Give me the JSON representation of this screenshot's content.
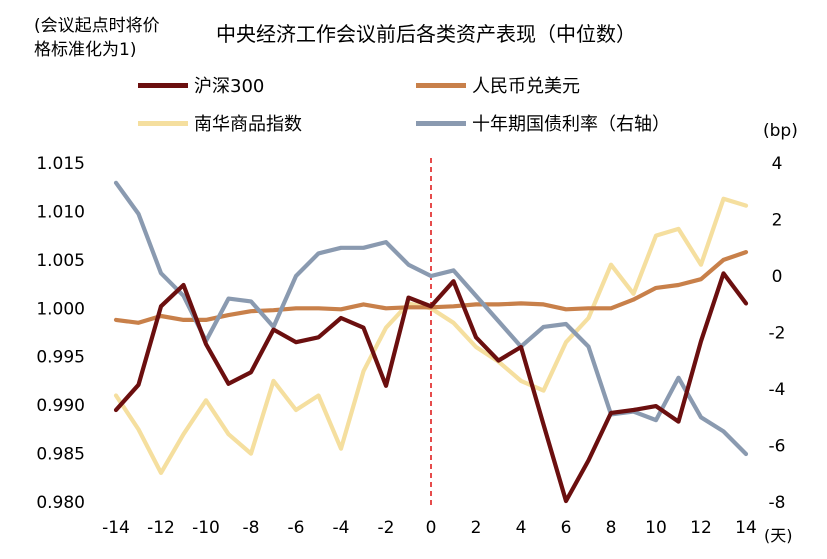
{
  "note_lines": [
    "(会议起点时将价",
    "格标准化为1)"
  ],
  "chart_data": {
    "type": "line",
    "title": "中央经济工作会议前后各类资产表现（中位数）",
    "x": [
      -14,
      -13,
      -12,
      -11,
      -10,
      -9,
      -8,
      -7,
      -6,
      -5,
      -4,
      -3,
      -2,
      -1,
      0,
      1,
      2,
      3,
      4,
      5,
      6,
      7,
      8,
      9,
      10,
      11,
      12,
      13,
      14
    ],
    "x_ticks": [
      "-14",
      "-12",
      "-10",
      "-8",
      "-6",
      "-4",
      "-2",
      "0",
      "2",
      "4",
      "6",
      "8",
      "10",
      "12",
      "14"
    ],
    "x_unit": "(天)",
    "left_axis": {
      "ylim": [
        0.98,
        1.015
      ],
      "ticks": [
        "1.015",
        "1.010",
        "1.005",
        "1.000",
        "0.995",
        "0.990",
        "0.985",
        "0.980"
      ]
    },
    "right_axis": {
      "unit": "(bp)",
      "ylim": [
        -8,
        4
      ],
      "ticks": [
        "4",
        "2",
        "0",
        "-2",
        "-4",
        "-6",
        "-8"
      ]
    },
    "vline_x": 0,
    "colors": {
      "vline": "#e02020"
    },
    "series": [
      {
        "name": "沪深300",
        "axis": "left",
        "color": "#6b0f0f",
        "values": [
          0.9895,
          0.9921,
          1.0002,
          1.0024,
          0.9963,
          0.9922,
          0.9934,
          0.9978,
          0.9965,
          0.997,
          0.999,
          0.998,
          0.992,
          1.0011,
          1.0002,
          1.0028,
          0.997,
          0.9946,
          0.996,
          0.988,
          0.9801,
          0.9843,
          0.9892,
          0.9895,
          0.9899,
          0.9883,
          0.9966,
          1.0036,
          1.0005
        ]
      },
      {
        "name": "人民币兑美元",
        "axis": "left",
        "color": "#c8804a",
        "values": [
          0.9988,
          0.9985,
          0.9992,
          0.9988,
          0.9988,
          0.9993,
          0.9997,
          0.9998,
          1.0,
          1.0,
          0.9999,
          1.0004,
          1.0,
          1.0001,
          1.0001,
          1.0002,
          1.0004,
          1.0004,
          1.0005,
          1.0004,
          0.9999,
          1.0,
          1.0,
          1.0009,
          1.0021,
          1.0024,
          1.003,
          1.005,
          1.0058
        ]
      },
      {
        "name": "南华商品指数",
        "axis": "left",
        "color": "#f5df9f",
        "values": [
          0.991,
          0.9875,
          0.983,
          0.987,
          0.9905,
          0.987,
          0.985,
          0.9925,
          0.9895,
          0.991,
          0.9855,
          0.9935,
          0.998,
          1.0005,
          1.0,
          0.9985,
          0.996,
          0.9945,
          0.9925,
          0.9915,
          0.9965,
          0.999,
          1.0045,
          1.0015,
          1.0075,
          1.0082,
          1.0045,
          1.0113,
          1.0106
        ]
      },
      {
        "name": "十年期国债利率（右轴）",
        "axis": "right",
        "color": "#8a9ab0",
        "values": [
          3.3,
          2.2,
          0.1,
          -0.7,
          -2.3,
          -0.8,
          -0.9,
          -1.8,
          0.0,
          0.8,
          1.0,
          1.0,
          1.2,
          0.4,
          0.0,
          0.2,
          -0.7,
          -1.6,
          -2.5,
          -1.8,
          -1.7,
          -2.5,
          -4.9,
          -4.8,
          -5.1,
          -3.6,
          -5.0,
          -5.5,
          -6.3
        ]
      }
    ]
  }
}
